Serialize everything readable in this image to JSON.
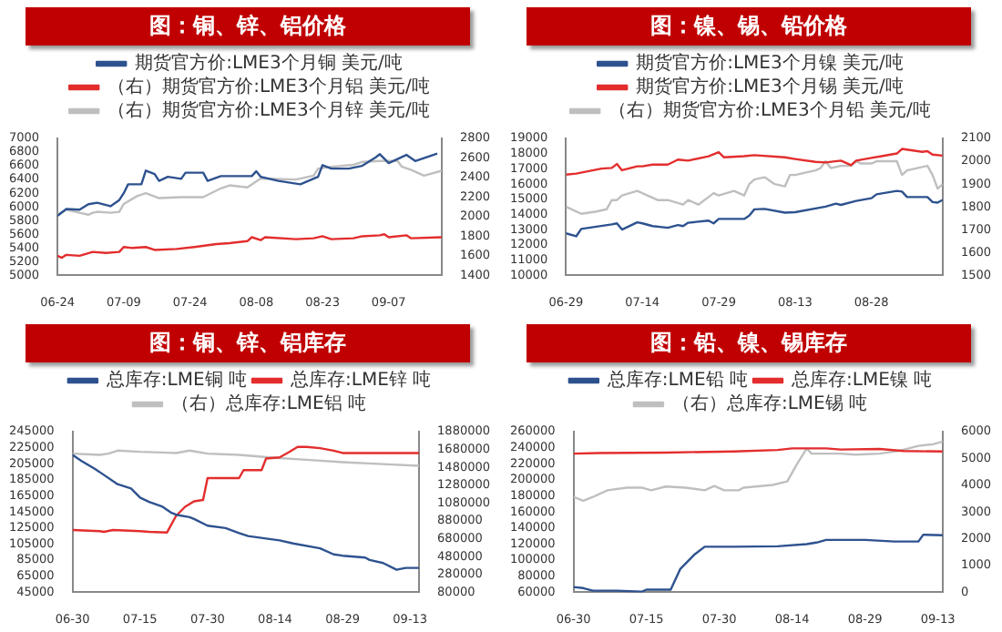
{
  "chart_data": [
    {
      "type": "line",
      "title": "图：铜、锌、铝价格",
      "legend": "top",
      "marker": "none",
      "xlim": [
        "--06-24",
        "--09-19"
      ],
      "xticks": [
        {
          "value": "--06-24",
          "label": "06-24"
        },
        {
          "value": "--07-09",
          "label": "07-09"
        },
        {
          "value": "--07-24",
          "label": "07-24"
        },
        {
          "value": "--08-08",
          "label": "08-08"
        },
        {
          "value": "--08-23",
          "label": "08-23"
        },
        {
          "value": "--09-07",
          "label": "09-07"
        }
      ],
      "ylim": [
        5000,
        7000
      ],
      "yticks": [
        5000,
        5200,
        5400,
        5600,
        5800,
        6000,
        6200,
        6400,
        6600,
        6800,
        7000
      ],
      "y2lim": [
        1400,
        2800
      ],
      "y2ticks": [
        1400,
        1600,
        1800,
        2000,
        2200,
        2400,
        2600,
        2800
      ],
      "series": [
        {
          "name": "期货官方价:LME3个月铜 美元/吨",
          "color": "#2e528f",
          "x": [
            "--06-24",
            "--06-26",
            "--06-29",
            "--07-01",
            "--07-03",
            "--07-06",
            "--07-08",
            "--07-09",
            "--07-10",
            "--07-13",
            "--07-14",
            "--07-16",
            "--07-17",
            "--07-19",
            "--07-22",
            "--07-23",
            "--07-27",
            "--07-28",
            "--07-31",
            "--08-07",
            "--08-08",
            "--08-09",
            "--08-13",
            "--08-18",
            "--08-22",
            "--08-23",
            "--08-25",
            "--08-29",
            "--09-01",
            "--09-04",
            "--09-05",
            "--09-07",
            "--09-11",
            "--09-13",
            "--09-18"
          ],
          "values": [
            5870,
            5970,
            5960,
            6040,
            6060,
            6010,
            6100,
            6200,
            6330,
            6330,
            6530,
            6480,
            6380,
            6440,
            6410,
            6500,
            6500,
            6380,
            6450,
            6450,
            6520,
            6440,
            6380,
            6330,
            6440,
            6610,
            6560,
            6560,
            6600,
            6720,
            6770,
            6640,
            6760,
            6670,
            6780
          ]
        },
        {
          "name": "（右）期货官方价:LME3个月铝 美元/吨",
          "color": "#e32d2d",
          "axis": "y2",
          "x": [
            "--06-24",
            "--06-25",
            "--06-26",
            "--06-29",
            "--07-02",
            "--07-05",
            "--07-08",
            "--07-09",
            "--07-11",
            "--07-14",
            "--07-16",
            "--07-21",
            "--07-25",
            "--07-30",
            "--08-02",
            "--08-06",
            "--08-07",
            "--08-09",
            "--08-10",
            "--08-17",
            "--08-21",
            "--08-23",
            "--08-25",
            "--08-30",
            "--09-01",
            "--09-05",
            "--09-06",
            "--09-07",
            "--09-11",
            "--09-12",
            "--09-19"
          ],
          "values": [
            1600,
            1580,
            1610,
            1600,
            1640,
            1630,
            1640,
            1690,
            1680,
            1690,
            1660,
            1670,
            1690,
            1720,
            1730,
            1750,
            1790,
            1760,
            1790,
            1770,
            1780,
            1800,
            1770,
            1780,
            1800,
            1810,
            1820,
            1790,
            1810,
            1780,
            1790
          ]
        },
        {
          "name": "（右）期货官方价:LME3个月锌 美元/吨",
          "color": "#bfbfbf",
          "axis": "y2",
          "x": [
            "--06-24",
            "--06-26",
            "--06-29",
            "--07-01",
            "--07-02",
            "--07-03",
            "--07-06",
            "--07-08",
            "--07-09",
            "--07-12",
            "--07-14",
            "--07-17",
            "--07-22",
            "--07-27",
            "--07-31",
            "--08-02",
            "--08-06",
            "--08-09",
            "--08-17",
            "--08-21",
            "--08-22",
            "--08-25",
            "--08-30",
            "--09-01",
            "--09-05",
            "--09-09",
            "--09-10",
            "--09-12",
            "--09-15",
            "--09-19"
          ],
          "values": [
            2020,
            2070,
            2040,
            2020,
            2040,
            2050,
            2040,
            2050,
            2130,
            2210,
            2240,
            2190,
            2200,
            2200,
            2290,
            2320,
            2300,
            2390,
            2380,
            2420,
            2490,
            2510,
            2530,
            2560,
            2570,
            2570,
            2510,
            2480,
            2420,
            2470
          ]
        }
      ]
    },
    {
      "type": "line",
      "title": "图：镍、锡、铅价格",
      "legend": "top",
      "marker": "none",
      "xlim": [
        "--06-29",
        "--09-11"
      ],
      "xticks": [
        {
          "value": "--06-29",
          "label": "06-29"
        },
        {
          "value": "--07-14",
          "label": "07-14"
        },
        {
          "value": "--07-29",
          "label": "07-29"
        },
        {
          "value": "--08-13",
          "label": "08-13"
        },
        {
          "value": "--08-28",
          "label": "08-28"
        }
      ],
      "ylim": [
        10000,
        19000
      ],
      "yticks": [
        10000,
        11000,
        12000,
        13000,
        14000,
        15000,
        16000,
        17000,
        18000,
        19000
      ],
      "y2lim": [
        1500,
        2100
      ],
      "y2ticks": [
        1500,
        1600,
        1700,
        1800,
        1900,
        2000,
        2100
      ],
      "series": [
        {
          "name": "期货官方价:LME3个月镍 美元/吨",
          "color": "#2e528f",
          "x": [
            "--06-29",
            "--07-01",
            "--07-02",
            "--07-05",
            "--07-08",
            "--07-09",
            "--07-10",
            "--07-13",
            "--07-14",
            "--07-16",
            "--07-19",
            "--07-21",
            "--07-22",
            "--07-23",
            "--07-27",
            "--07-28",
            "--07-29",
            "--08-03",
            "--08-04",
            "--08-05",
            "--08-07",
            "--08-11",
            "--08-13",
            "--08-19",
            "--08-21",
            "--08-22",
            "--08-25",
            "--08-28",
            "--08-29",
            "--09-02",
            "--09-03",
            "--09-04",
            "--09-08",
            "--09-09",
            "--09-10",
            "--09-11"
          ],
          "values": [
            12760,
            12570,
            13050,
            13200,
            13350,
            13420,
            13010,
            13490,
            13420,
            13240,
            13130,
            13310,
            13240,
            13460,
            13600,
            13420,
            13710,
            13710,
            13930,
            14340,
            14370,
            14120,
            14150,
            14520,
            14710,
            14630,
            14890,
            15070,
            15330,
            15550,
            15510,
            15150,
            15150,
            14820,
            14780,
            14960
          ]
        },
        {
          "name": "期货官方价:LME3个月锡 美元/吨",
          "color": "#e32d2d",
          "x": [
            "--06-29",
            "--07-01",
            "--07-06",
            "--07-08",
            "--07-09",
            "--07-10",
            "--07-13",
            "--07-14",
            "--07-16",
            "--07-19",
            "--07-21",
            "--07-23",
            "--07-27",
            "--07-29",
            "--07-30",
            "--08-03",
            "--08-05",
            "--08-11",
            "--08-13",
            "--08-17",
            "--08-19",
            "--08-22",
            "--08-24",
            "--08-25",
            "--08-28",
            "--08-30",
            "--09-02",
            "--09-03",
            "--09-07",
            "--09-08",
            "--09-09",
            "--09-11"
          ],
          "values": [
            16620,
            16690,
            17020,
            17060,
            17320,
            16910,
            17170,
            17170,
            17280,
            17280,
            17610,
            17540,
            17830,
            18090,
            17760,
            17830,
            17900,
            17760,
            17650,
            17460,
            17420,
            17540,
            17240,
            17540,
            17720,
            17830,
            18010,
            18310,
            18120,
            18160,
            17940,
            17870
          ]
        },
        {
          "name": "（右）期货官方价:LME3个月铅 美元/吨",
          "color": "#bfbfbf",
          "axis": "y2",
          "x": [
            "--06-29",
            "--06-30",
            "--07-02",
            "--07-05",
            "--07-07",
            "--07-08",
            "--07-09",
            "--07-10",
            "--07-13",
            "--07-14",
            "--07-17",
            "--07-19",
            "--07-22",
            "--07-23",
            "--07-25",
            "--07-28",
            "--07-29",
            "--08-01",
            "--08-03",
            "--08-04",
            "--08-05",
            "--08-07",
            "--08-09",
            "--08-11",
            "--08-12",
            "--08-13",
            "--08-17",
            "--08-18",
            "--08-19",
            "--08-20",
            "--08-22",
            "--08-24",
            "--08-25",
            "--08-26",
            "--08-28",
            "--08-29",
            "--09-02",
            "--09-03",
            "--09-04",
            "--09-08",
            "--09-09",
            "--09-10",
            "--09-11"
          ],
          "values": [
            1800,
            1790,
            1770,
            1780,
            1790,
            1830,
            1830,
            1850,
            1870,
            1860,
            1830,
            1830,
            1810,
            1830,
            1810,
            1860,
            1850,
            1870,
            1850,
            1900,
            1920,
            1930,
            1900,
            1890,
            1940,
            1940,
            1960,
            1970,
            2000,
            1970,
            1980,
            1980,
            2000,
            1990,
            1990,
            2000,
            2000,
            1940,
            1960,
            1980,
            1940,
            1880,
            1900
          ]
        }
      ]
    },
    {
      "type": "line",
      "title": "图：铜、锌、铝库存",
      "legend": "top",
      "marker": "none",
      "xlim": [
        "--06-30",
        "--09-15"
      ],
      "xticks": [
        {
          "value": "--06-30",
          "label": "06-30"
        },
        {
          "value": "--07-15",
          "label": "07-15"
        },
        {
          "value": "--07-30",
          "label": "07-30"
        },
        {
          "value": "--08-14",
          "label": "08-14"
        },
        {
          "value": "--08-29",
          "label": "08-29"
        },
        {
          "value": "--09-13",
          "label": "09-13"
        }
      ],
      "ylim": [
        45000,
        245000
      ],
      "yticks": [
        45000,
        65000,
        85000,
        105000,
        125000,
        145000,
        165000,
        185000,
        205000,
        225000,
        245000
      ],
      "y2lim": [
        80000,
        1880000
      ],
      "y2ticks": [
        80000,
        280000,
        480000,
        680000,
        880000,
        1080000,
        1280000,
        1480000,
        1680000,
        1880000
      ],
      "series": [
        {
          "name": "总库存:LME铜 吨",
          "color": "#2e528f",
          "x": [
            "--06-30",
            "--07-02",
            "--07-05",
            "--07-07",
            "--07-10",
            "--07-13",
            "--07-15",
            "--07-17",
            "--07-20",
            "--07-22",
            "--07-23",
            "--07-26",
            "--07-27",
            "--07-30",
            "--08-03",
            "--08-06",
            "--08-08",
            "--08-12",
            "--08-15",
            "--08-18",
            "--08-24",
            "--08-27",
            "--08-29",
            "--09-03",
            "--09-04",
            "--09-07",
            "--09-10",
            "--09-12",
            "--09-15"
          ],
          "values": [
            216100,
            208500,
            198600,
            191000,
            179600,
            174300,
            162900,
            157600,
            151500,
            143900,
            141600,
            138500,
            136300,
            127900,
            124900,
            118800,
            115000,
            111900,
            109600,
            105800,
            99800,
            92200,
            90600,
            88300,
            85300,
            81500,
            73100,
            75400,
            75400
          ]
        },
        {
          "name": "总库存:LME锌 吨",
          "color": "#e32d2d",
          "x": [
            "--06-30",
            "--07-06",
            "--07-07",
            "--07-09",
            "--07-15",
            "--07-17",
            "--07-21",
            "--07-23",
            "--07-25",
            "--07-27",
            "--07-29",
            "--07-30",
            "--08-06",
            "--08-07",
            "--08-11",
            "--08-12",
            "--08-15",
            "--08-17",
            "--08-19",
            "--08-21",
            "--08-24",
            "--08-27",
            "--08-29",
            "--09-15"
          ],
          "values": [
            122600,
            121100,
            120300,
            122600,
            121100,
            120300,
            119500,
            140100,
            151500,
            158300,
            160000,
            187200,
            187200,
            197100,
            197100,
            211500,
            213000,
            219200,
            226000,
            226000,
            224500,
            221400,
            218400,
            218400
          ]
        },
        {
          "name": "（右）总库存:LME铝 吨",
          "color": "#bfbfbf",
          "axis": "y2",
          "x": [
            "--06-30",
            "--07-06",
            "--07-08",
            "--07-10",
            "--07-15",
            "--07-20",
            "--07-23",
            "--07-26",
            "--07-30",
            "--08-06",
            "--08-14",
            "--08-21",
            "--08-29",
            "--09-07",
            "--09-15"
          ],
          "values": [
            1634000,
            1620000,
            1634000,
            1668000,
            1654000,
            1647000,
            1640000,
            1668000,
            1634000,
            1620000,
            1586000,
            1565000,
            1538000,
            1517000,
            1497000
          ]
        }
      ]
    },
    {
      "type": "line",
      "title": "图：铅、镍、锡库存",
      "legend": "top",
      "marker": "none",
      "xlim": [
        "--06-30",
        "--09-14"
      ],
      "xticks": [
        {
          "value": "--06-30",
          "label": "06-30"
        },
        {
          "value": "--07-15",
          "label": "07-15"
        },
        {
          "value": "--07-30",
          "label": "07-30"
        },
        {
          "value": "--08-14",
          "label": "08-14"
        },
        {
          "value": "--08-29",
          "label": "08-29"
        },
        {
          "value": "--09-13",
          "label": "09-13"
        }
      ],
      "ylim": [
        60000,
        260000
      ],
      "yticks": [
        60000,
        80000,
        100000,
        120000,
        140000,
        160000,
        180000,
        200000,
        220000,
        240000,
        260000
      ],
      "y2lim": [
        0,
        6000
      ],
      "y2ticks": [
        0,
        1000,
        2000,
        3000,
        4000,
        5000,
        6000
      ],
      "series": [
        {
          "name": "总库存:LME铅 吨",
          "color": "#2e528f",
          "x": [
            "--06-30",
            "--07-02",
            "--07-04",
            "--07-09",
            "--07-14",
            "--07-15",
            "--07-20",
            "--07-22",
            "--07-25",
            "--07-27",
            "--08-02",
            "--08-11",
            "--08-17",
            "--08-19",
            "--08-21",
            "--08-29",
            "--09-04",
            "--09-09",
            "--09-10",
            "--09-14"
          ],
          "values": [
            66500,
            65200,
            62000,
            62000,
            60700,
            63300,
            63300,
            89300,
            107600,
            116700,
            116700,
            117300,
            120000,
            121900,
            125200,
            125200,
            123200,
            123200,
            131700,
            131000
          ]
        },
        {
          "name": "总库存:LME镍 吨",
          "color": "#e32d2d",
          "x": [
            "--06-30",
            "--07-05",
            "--07-19",
            "--08-02",
            "--08-11",
            "--08-14",
            "--08-21",
            "--08-24",
            "--09-01",
            "--09-06",
            "--09-14"
          ],
          "values": [
            232600,
            233300,
            234000,
            235300,
            237200,
            239200,
            239200,
            237800,
            238500,
            235900,
            235300
          ]
        },
        {
          "name": "（右）总库存:LME锡 吨",
          "color": "#bfbfbf",
          "axis": "y2",
          "x": [
            "--06-30",
            "--07-02",
            "--07-04",
            "--07-07",
            "--07-11",
            "--07-14",
            "--07-16",
            "--07-19",
            "--07-23",
            "--07-27",
            "--07-29",
            "--07-31",
            "--08-03",
            "--08-04",
            "--08-10",
            "--08-13",
            "--08-15",
            "--08-17",
            "--08-18",
            "--08-24",
            "--08-27",
            "--09-01",
            "--09-05",
            "--09-09",
            "--09-12",
            "--09-14"
          ],
          "values": [
            3560,
            3420,
            3560,
            3810,
            3910,
            3910,
            3810,
            3950,
            3910,
            3810,
            3970,
            3810,
            3810,
            3910,
            4010,
            4140,
            4790,
            5370,
            5180,
            5180,
            5140,
            5180,
            5280,
            5470,
            5530,
            5630
          ]
        }
      ]
    }
  ]
}
